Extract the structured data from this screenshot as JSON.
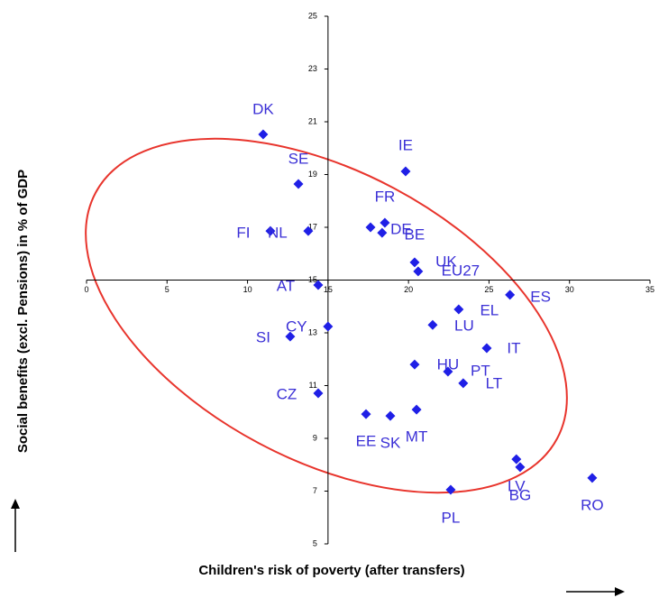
{
  "chart_data": {
    "type": "scatter",
    "x_label": "Children's risk of poverty (after transfers)",
    "y_label": "Social benefits (excl. Pensions) in % of GDP",
    "xlim": [
      0,
      35
    ],
    "xticks": [
      0,
      5,
      10,
      15,
      20,
      25,
      30,
      35
    ],
    "ylim": [
      5,
      25
    ],
    "yticks": [
      5,
      7,
      9,
      11,
      13,
      15,
      17,
      19,
      21,
      23,
      25
    ],
    "xaxis_at_y": 15,
    "yaxis_at_x": 15,
    "color": "#1f1fe6",
    "labels": [
      "DK",
      "SE",
      "IE",
      "FR",
      "DE",
      "BE",
      "FI",
      "NL",
      "UK",
      "EU27",
      "AT",
      "CY",
      "SI",
      "EL",
      "ES",
      "LU",
      "IT",
      "HU",
      "PT",
      "LT",
      "CZ",
      "EE",
      "SK",
      "MT",
      "LV",
      "BG",
      "PL",
      "RO"
    ],
    "x": [
      10.97,
      13.16,
      19.82,
      17.64,
      18.53,
      18.36,
      11.42,
      13.77,
      20.38,
      20.6,
      14.39,
      15.0,
      12.65,
      23.12,
      26.3,
      21.5,
      24.86,
      20.38,
      22.45,
      23.4,
      14.39,
      17.36,
      18.87,
      20.5,
      26.7,
      26.93,
      22.62,
      31.41
    ],
    "values": [
      20.52,
      18.64,
      19.12,
      17.0,
      17.17,
      16.79,
      16.86,
      16.86,
      15.67,
      15.33,
      14.81,
      13.24,
      12.86,
      13.89,
      14.44,
      13.3,
      12.42,
      11.8,
      11.53,
      11.09,
      10.71,
      9.92,
      9.85,
      10.09,
      8.21,
      7.91,
      7.05,
      7.5
    ]
  }
}
